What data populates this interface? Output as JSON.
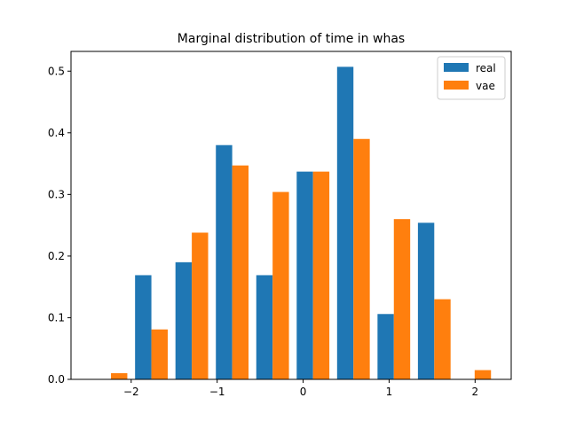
{
  "chart_data": {
    "type": "bar",
    "title": "Marginal distribution of time in whas",
    "xlabel": "",
    "ylabel": "",
    "xlim": [
      -2.7,
      2.42
    ],
    "ylim": [
      0,
      0.532
    ],
    "xticks": [
      -2,
      -1,
      0,
      1,
      2
    ],
    "xtick_labels": [
      "−2",
      "−1",
      "0",
      "1",
      "2"
    ],
    "yticks": [
      0.0,
      0.1,
      0.2,
      0.3,
      0.4,
      0.5
    ],
    "ytick_labels": [
      "0.0",
      "0.1",
      "0.2",
      "0.3",
      "0.4",
      "0.5"
    ],
    "grid": false,
    "legend_position": "top-right",
    "bar_width": 0.19,
    "series": [
      {
        "name": "real",
        "color": "#1f77b4",
        "x": [
          -2.33,
          -1.86,
          -1.39,
          -0.92,
          -0.45,
          0.02,
          0.49,
          0.96,
          1.43,
          1.9
        ],
        "values": [
          0.0,
          0.169,
          0.19,
          0.38,
          0.169,
          0.337,
          0.507,
          0.106,
          0.254,
          0.0
        ]
      },
      {
        "name": "vae",
        "color": "#ff7f0e",
        "x": [
          -2.14,
          -1.67,
          -1.2,
          -0.73,
          -0.26,
          0.21,
          0.68,
          1.15,
          1.62,
          2.09
        ],
        "values": [
          0.01,
          0.081,
          0.238,
          0.347,
          0.304,
          0.337,
          0.39,
          0.26,
          0.13,
          0.015
        ]
      }
    ]
  }
}
